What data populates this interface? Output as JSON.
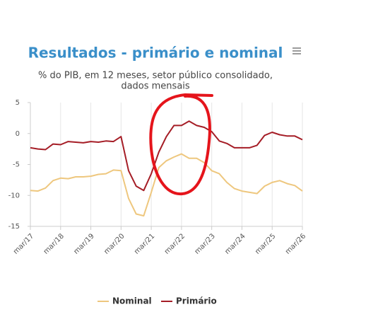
{
  "chart_data": {
    "type": "line",
    "title": "Resultados - primário e nominal",
    "subtitle": [
      "% do PIB, em 12 meses, setor público consolidado,",
      "dados mensais"
    ],
    "categories": [
      "mar/17",
      null,
      null,
      null,
      "mar/18",
      null,
      null,
      null,
      "mar/19",
      null,
      null,
      null,
      "mar/20",
      null,
      null,
      null,
      "mar/21",
      null,
      null,
      null,
      "mar/22",
      null,
      null,
      null,
      "mar/23",
      null,
      null,
      null,
      "mar/24",
      null,
      null,
      null,
      "mar/25",
      null,
      null,
      null,
      "mar/26"
    ],
    "series": [
      {
        "name": "Nominal",
        "color": "#eec77e",
        "values": [
          -9.2,
          -9.3,
          -8.8,
          -7.6,
          -7.2,
          -7.3,
          -7.0,
          -7.0,
          -6.9,
          -6.6,
          -6.5,
          -5.9,
          -6.0,
          -10.5,
          -13.0,
          -13.3,
          -9.5,
          -5.5,
          -4.4,
          -3.8,
          -3.3,
          -4.0,
          -4.0,
          -4.7,
          -6.0,
          -6.5,
          -7.9,
          -8.9,
          -9.3,
          -9.5,
          -9.7,
          -8.5,
          -7.9,
          -7.6,
          -8.1,
          -8.4,
          -9.3
        ]
      },
      {
        "name": "Primário",
        "color": "#a51d26",
        "values": [
          -2.3,
          -2.5,
          -2.6,
          -1.7,
          -1.8,
          -1.3,
          -1.4,
          -1.5,
          -1.3,
          -1.4,
          -1.2,
          -1.3,
          -0.5,
          -6.0,
          -8.5,
          -9.2,
          -6.5,
          -3.0,
          -0.5,
          1.3,
          1.3,
          2.0,
          1.3,
          1.0,
          0.3,
          -1.2,
          -1.6,
          -2.3,
          -2.3,
          -2.3,
          -1.9,
          -0.3,
          0.2,
          -0.2,
          -0.4,
          -0.4,
          -1.0
        ]
      }
    ],
    "ylim": [
      -15,
      5
    ],
    "yticks": [
      5,
      0,
      -5,
      -10,
      -15
    ],
    "grid": true
  }
}
